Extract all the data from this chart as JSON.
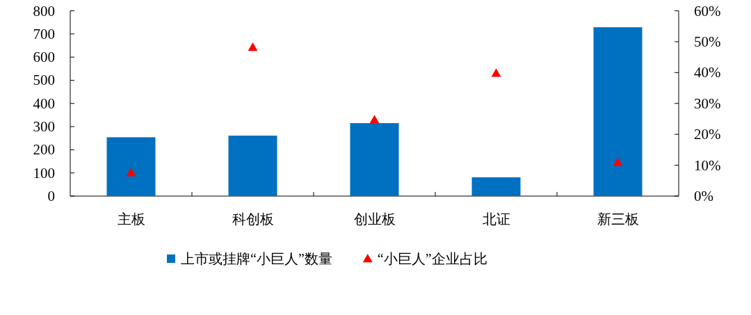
{
  "chart_data": {
    "type": "bar",
    "categories": [
      "主板",
      "科创板",
      "创业板",
      "北证",
      "新三板"
    ],
    "series": [
      {
        "name": "上市或挂牌“小巨人”数量",
        "color": "#0070c0",
        "values": [
          254,
          261,
          315,
          81,
          729
        ]
      },
      {
        "name": "“小巨人”企业占比",
        "type": "scatter",
        "axis": "y2",
        "color": "#ff0000",
        "marker": "triangle",
        "values": [
          7.6,
          48.2,
          24.7,
          39.8,
          10.9
        ]
      }
    ],
    "ylim": [
      0,
      800
    ],
    "yticks": [
      0,
      100,
      200,
      300,
      400,
      500,
      600,
      700,
      800
    ],
    "y2lim": [
      0,
      60
    ],
    "y2ticks": [
      {
        "value": 0,
        "label": "0%"
      },
      {
        "value": 10,
        "label": "10%"
      },
      {
        "value": 20,
        "label": "20%"
      },
      {
        "value": 30,
        "label": "30%"
      },
      {
        "value": 40,
        "label": "40%"
      },
      {
        "value": 50,
        "label": "50%"
      },
      {
        "value": 60,
        "label": "60%"
      }
    ],
    "grid": false,
    "legend": "bottom"
  }
}
